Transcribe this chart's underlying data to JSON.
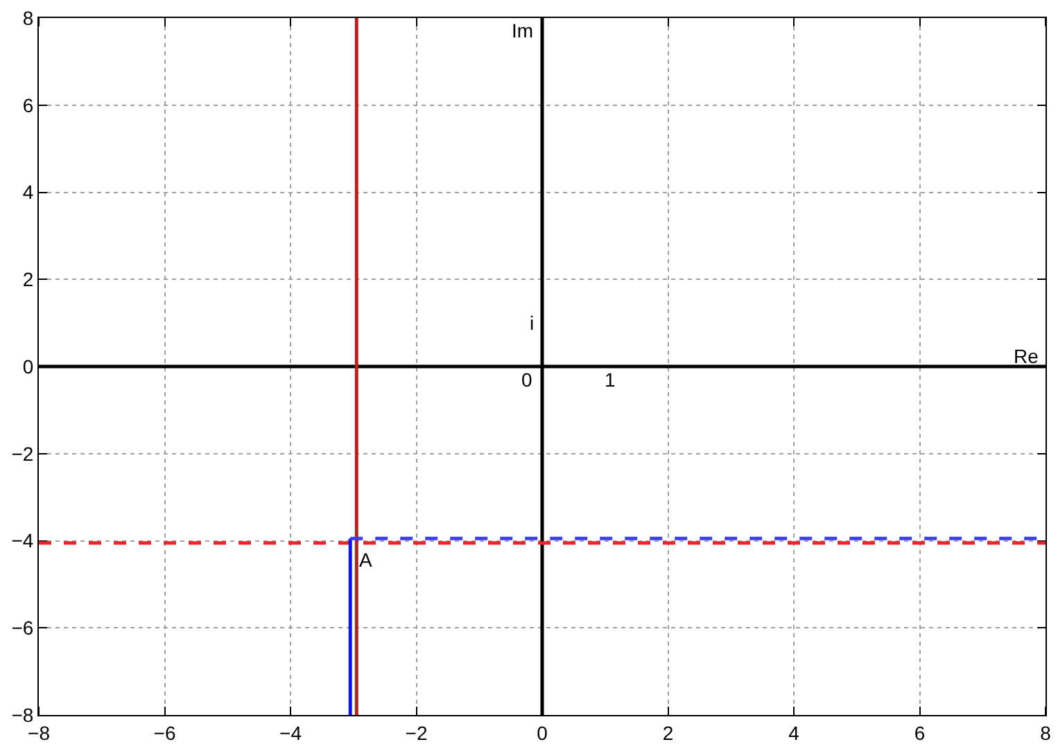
{
  "chart_data": {
    "type": "line",
    "xlim": [
      -8,
      8
    ],
    "ylim": [
      -8,
      8
    ],
    "xticks": [
      -8,
      -6,
      -4,
      -2,
      0,
      2,
      4,
      6,
      8
    ],
    "yticks": [
      -8,
      -6,
      -4,
      -2,
      0,
      2,
      4,
      6,
      8
    ],
    "grid": true,
    "marker": "none",
    "series": [
      {
        "color": "#000000",
        "x": [
          0,
          0
        ],
        "values": [
          -8,
          8
        ],
        "line_style": "solid"
      },
      {
        "color": "#000000",
        "x": [
          -8,
          8
        ],
        "values": [
          0,
          0
        ],
        "line_style": "solid"
      },
      {
        "color": "#b22222",
        "x": [
          -2.95,
          -2.95
        ],
        "values": [
          -8,
          8
        ],
        "line_style": "solid"
      },
      {
        "color": "#e8262b",
        "x": [
          -8,
          8
        ],
        "values": [
          -4.05,
          -4.05
        ],
        "line_style": "dashed"
      },
      {
        "color": "#1414e6",
        "x": [
          -3.05,
          -3.05
        ],
        "values": [
          -8,
          -3.95
        ],
        "line_style": "solid"
      },
      {
        "color": "#3c3cf0",
        "x": [
          -3.05,
          8
        ],
        "values": [
          -3.95,
          -3.95
        ],
        "line_style": "dashed"
      }
    ],
    "annotations": [
      "Im",
      "Re",
      "i",
      "0",
      "1",
      "A"
    ]
  }
}
